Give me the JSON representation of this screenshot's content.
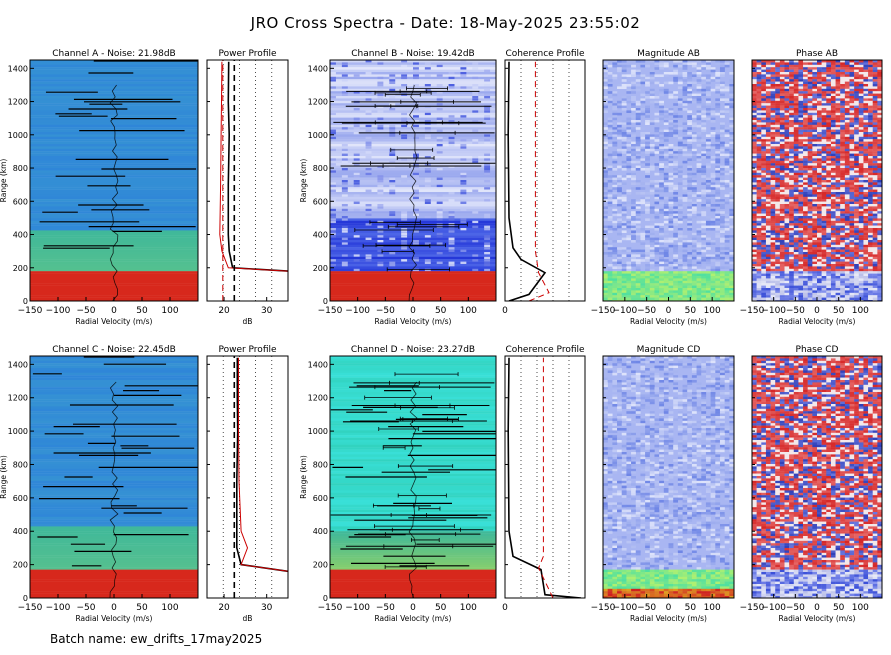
{
  "figure": {
    "title": "JRO Cross Spectra - Date: 18-May-2025 23:55:02",
    "batch_label": "Batch name: ew_drifts_17may2025"
  },
  "axes_text": {
    "radial_velocity": "Radial Velocity (m/s)",
    "range_km": "Range (km)",
    "db": "dB"
  },
  "colors": {
    "ocean_blue": "#2f86d8",
    "sea_green": "#3fb89a",
    "echo_red": "#d7281c",
    "mag_blue": "#6f86e6",
    "phase_red": "#d62828",
    "phase_blue": "#2f3fb8",
    "bright_cyan": "#39e0d8",
    "profile_red": "#cc0000"
  },
  "chart_data": [
    {
      "id": "A",
      "type": "heatmap",
      "title": "Channel A - Noise: 21.98dB",
      "xlabel": "Radial Velocity (m/s)",
      "ylabel": "Range (km)",
      "xlim": [
        -150,
        150
      ],
      "ylim": [
        0,
        1450
      ],
      "xticks": [
        "-150",
        "-100",
        "-50",
        "0",
        "50",
        "100"
      ],
      "yticks": [
        "0",
        "200",
        "400",
        "600",
        "800",
        "1000",
        "1200",
        "1400"
      ]
    },
    {
      "id": "PA",
      "type": "line",
      "title": "Power Profile",
      "xlabel": "dB",
      "xlim": [
        16,
        35
      ],
      "ylim": [
        0,
        1450
      ],
      "xticks": [
        "20",
        "30"
      ],
      "series": [
        {
          "style": "black-solid",
          "x": [
            35,
            22,
            21.2,
            21,
            21,
            21.2,
            21,
            21.1
          ],
          "y": [
            180,
            200,
            300,
            400,
            700,
            1000,
            1200,
            1440
          ]
        },
        {
          "style": "red-solid",
          "x": [
            35,
            21,
            19.5,
            19,
            19.2,
            19.3,
            19.4,
            19.5
          ],
          "y": [
            180,
            200,
            300,
            400,
            700,
            1000,
            1200,
            1440
          ]
        },
        {
          "style": "black-dash",
          "x": [
            22.4,
            22.4
          ],
          "y": [
            0,
            1450
          ]
        },
        {
          "style": "red-dash",
          "x": [
            19.7,
            19.7
          ],
          "y": [
            0,
            1450
          ]
        }
      ]
    },
    {
      "id": "B",
      "type": "heatmap",
      "title": "Channel B - Noise: 19.42dB",
      "xlabel": "Radial Velocity (m/s)",
      "ylabel": "Range (km)",
      "xlim": [
        -150,
        150
      ],
      "ylim": [
        0,
        1450
      ],
      "xticks": [
        "-150",
        "-100",
        "-50",
        "0",
        "50",
        "100"
      ],
      "yticks": [
        "0",
        "200",
        "400",
        "600",
        "800",
        "1000",
        "1200",
        "1400"
      ]
    },
    {
      "id": "CB",
      "type": "line",
      "title": "Coherence Profile",
      "xlabel": "",
      "xlim": [
        0,
        1
      ],
      "ylim": [
        0,
        1450
      ],
      "xticks": [
        "0"
      ],
      "series": [
        {
          "style": "black-solid",
          "x": [
            0.05,
            0.3,
            0.5,
            0.2,
            0.1,
            0.05,
            0.04,
            0.05
          ],
          "y": [
            0,
            40,
            170,
            250,
            320,
            500,
            1000,
            1440
          ]
        },
        {
          "style": "red-dash",
          "x": [
            0.3,
            0.55,
            0.42,
            0.38,
            0.38,
            0.38
          ],
          "y": [
            0,
            50,
            170,
            300,
            800,
            1440
          ]
        }
      ]
    },
    {
      "id": "MAB",
      "type": "heatmap",
      "title": "Magnitude AB",
      "xlabel": "Radial Velocity (m/s)",
      "xlim": [
        -150,
        150
      ],
      "ylim": [
        0,
        1450
      ],
      "xticks": [
        "-150",
        "-100",
        "-50",
        "0",
        "50",
        "100"
      ]
    },
    {
      "id": "PAB",
      "type": "heatmap",
      "title": "Phase AB",
      "xlabel": "Radial Velocity (m/s)",
      "xlim": [
        -150,
        150
      ],
      "ylim": [
        0,
        1450
      ],
      "xticks": [
        "-150",
        "-100",
        "-50",
        "0",
        "50",
        "100"
      ]
    },
    {
      "id": "C",
      "type": "heatmap",
      "title": "Channel C - Noise: 22.45dB",
      "xlabel": "Radial Velocity (m/s)",
      "ylabel": "Range (km)",
      "xlim": [
        -150,
        150
      ],
      "ylim": [
        0,
        1450
      ],
      "xticks": [
        "-150",
        "-100",
        "-50",
        "0",
        "50",
        "100"
      ],
      "yticks": [
        "0",
        "200",
        "400",
        "600",
        "800",
        "1000",
        "1200",
        "1400"
      ]
    },
    {
      "id": "PC",
      "type": "line",
      "title": "Power Profile",
      "xlabel": "dB",
      "xlim": [
        16,
        35
      ],
      "ylim": [
        0,
        1450
      ],
      "xticks": [
        "20",
        "30"
      ],
      "series": [
        {
          "style": "black-solid",
          "x": [
            35,
            24,
            23,
            23,
            23,
            23.2,
            23.1,
            23.1
          ],
          "y": [
            160,
            200,
            300,
            400,
            700,
            1000,
            1200,
            1440
          ]
        },
        {
          "style": "red-solid",
          "x": [
            35,
            24,
            25.5,
            24,
            23.5,
            23.4,
            23.4,
            23.4
          ],
          "y": [
            160,
            200,
            300,
            400,
            700,
            1000,
            1200,
            1440
          ]
        },
        {
          "style": "black-dash",
          "x": [
            22.4,
            22.4
          ],
          "y": [
            0,
            1450
          ]
        }
      ]
    },
    {
      "id": "D",
      "type": "heatmap",
      "title": "Channel D - Noise: 23.27dB",
      "xlabel": "Radial Velocity (m/s)",
      "ylabel": "Range (km)",
      "xlim": [
        -150,
        150
      ],
      "ylim": [
        0,
        1450
      ],
      "xticks": [
        "-150",
        "-100",
        "-50",
        "0",
        "50",
        "100"
      ],
      "yticks": [
        "0",
        "200",
        "400",
        "600",
        "800",
        "1000",
        "1200",
        "1400"
      ]
    },
    {
      "id": "CD",
      "type": "line",
      "title": "Coherence Profile",
      "xlabel": "",
      "xlim": [
        0,
        1
      ],
      "ylim": [
        0,
        1450
      ],
      "xticks": [
        "0"
      ],
      "series": [
        {
          "style": "black-solid",
          "x": [
            0.95,
            0.5,
            0.45,
            0.1,
            0.05,
            0.04,
            0.05
          ],
          "y": [
            0,
            20,
            170,
            250,
            400,
            1000,
            1440
          ]
        },
        {
          "style": "red-dash",
          "x": [
            0.6,
            0.5,
            0.42,
            0.48,
            0.48,
            0.48
          ],
          "y": [
            0,
            100,
            180,
            250,
            800,
            1440
          ]
        }
      ]
    },
    {
      "id": "MCD",
      "type": "heatmap",
      "title": "Magnitude CD",
      "xlabel": "Radial Velocity (m/s)",
      "xlim": [
        -150,
        150
      ],
      "ylim": [
        0,
        1450
      ],
      "xticks": [
        "-150",
        "-100",
        "-50",
        "0",
        "50",
        "100"
      ]
    },
    {
      "id": "PCD",
      "type": "heatmap",
      "title": "Phase CD",
      "xlabel": "Radial Velocity (m/s)",
      "xlim": [
        -150,
        150
      ],
      "ylim": [
        0,
        1450
      ],
      "xticks": [
        "-150",
        "-100",
        "-50",
        "0",
        "50",
        "100"
      ]
    }
  ]
}
